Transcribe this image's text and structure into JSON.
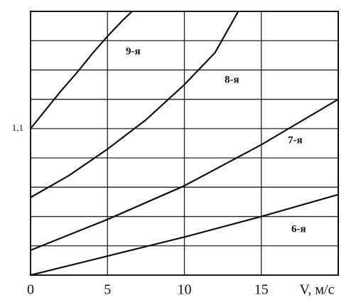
{
  "chart_data": {
    "type": "line",
    "x_label": "V, м/с",
    "xlim": [
      0,
      20
    ],
    "xticks": [
      0,
      5,
      10,
      15
    ],
    "ylim": [
      1.0,
      1.18
    ],
    "yticks": [
      {
        "value": 1.0,
        "label": null
      },
      {
        "value": 1.02,
        "label": null
      },
      {
        "value": 1.04,
        "label": null
      },
      {
        "value": 1.06,
        "label": null
      },
      {
        "value": 1.08,
        "label": null
      },
      {
        "value": 1.1,
        "label": "1,1"
      },
      {
        "value": 1.12,
        "label": null
      },
      {
        "value": 1.14,
        "label": null
      },
      {
        "value": 1.16,
        "label": null
      },
      {
        "value": 1.18,
        "label": null
      }
    ],
    "grid": true,
    "series": [
      {
        "name": "9-я",
        "color": "#111111",
        "x": [
          0,
          1,
          2,
          3,
          4,
          5,
          6,
          6.6
        ],
        "values": [
          1.1,
          1.113,
          1.126,
          1.138,
          1.151,
          1.163,
          1.174,
          1.18
        ]
      },
      {
        "name": "8-я",
        "color": "#111111",
        "x": [
          0,
          2.5,
          5,
          7.5,
          10,
          12,
          13.5
        ],
        "values": [
          1.053,
          1.068,
          1.086,
          1.106,
          1.13,
          1.152,
          1.18
        ]
      },
      {
        "name": "7-я",
        "color": "#111111",
        "x": [
          0,
          5,
          10,
          15,
          20
        ],
        "values": [
          1.017,
          1.038,
          1.061,
          1.089,
          1.12
        ]
      },
      {
        "name": "6-я",
        "color": "#111111",
        "x": [
          0,
          5,
          10,
          15,
          20
        ],
        "values": [
          1.0,
          1.013,
          1.026,
          1.04,
          1.055
        ]
      }
    ]
  }
}
